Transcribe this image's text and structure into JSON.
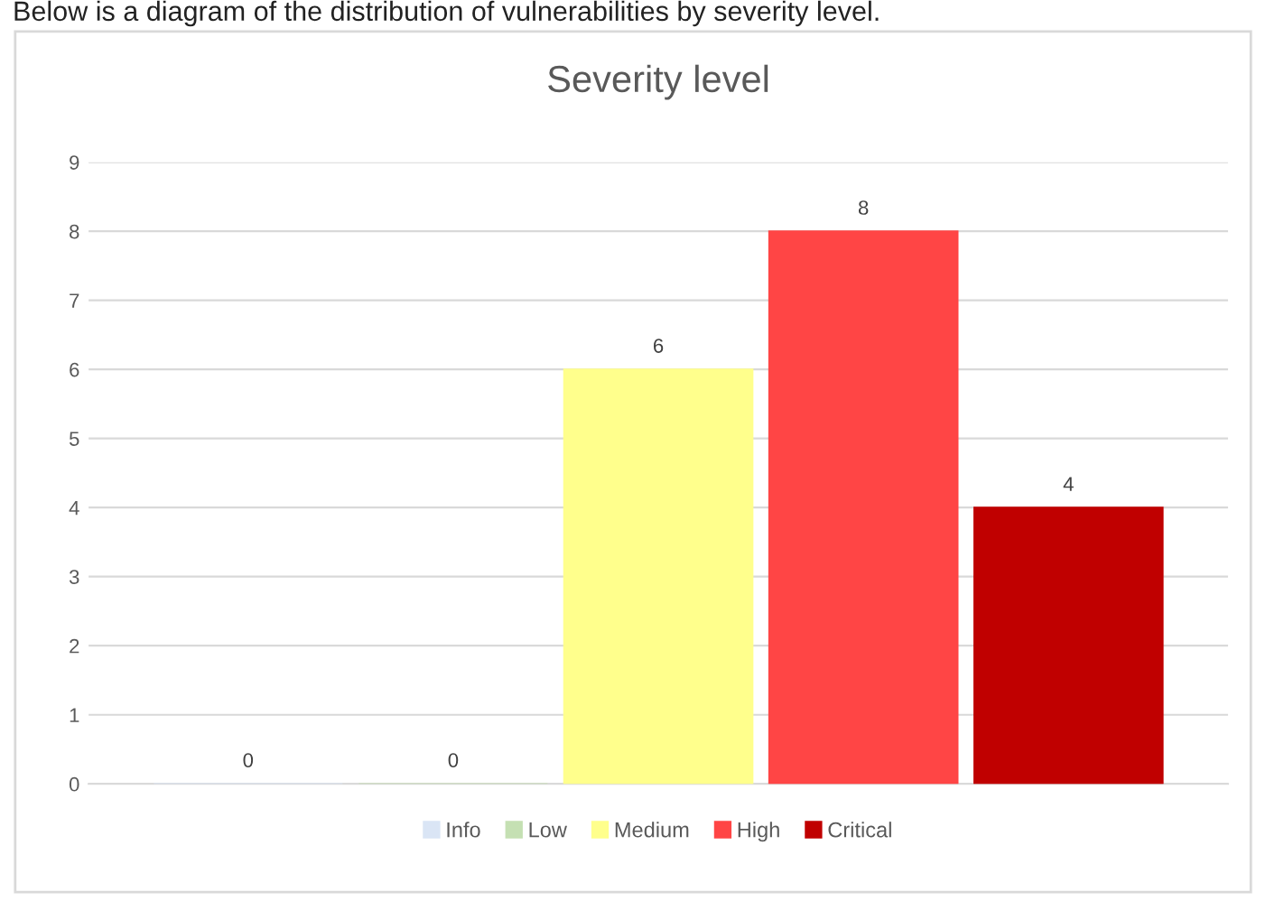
{
  "chart_data": {
    "type": "bar",
    "title": "Severity level",
    "annotations": [
      "Below is a diagram of the distribution of vulnerabilities by severity level."
    ],
    "categories": [
      null
    ],
    "series": [
      {
        "name": "Info",
        "color": "#dae5f5",
        "values": [
          0
        ]
      },
      {
        "name": "Low",
        "color": "#c5e0b3",
        "values": [
          0
        ]
      },
      {
        "name": "Medium",
        "color": "#ffff8c",
        "values": [
          6
        ]
      },
      {
        "name": "High",
        "color": "#ff4545",
        "values": [
          8
        ]
      },
      {
        "name": "Critical",
        "color": "#c00000",
        "values": [
          4
        ]
      }
    ],
    "ylim": [
      0,
      9
    ],
    "yticks": [
      0,
      1,
      2,
      3,
      4,
      5,
      6,
      7,
      8,
      9
    ],
    "grid": "y",
    "legend": "bottom",
    "data_labels": true
  }
}
